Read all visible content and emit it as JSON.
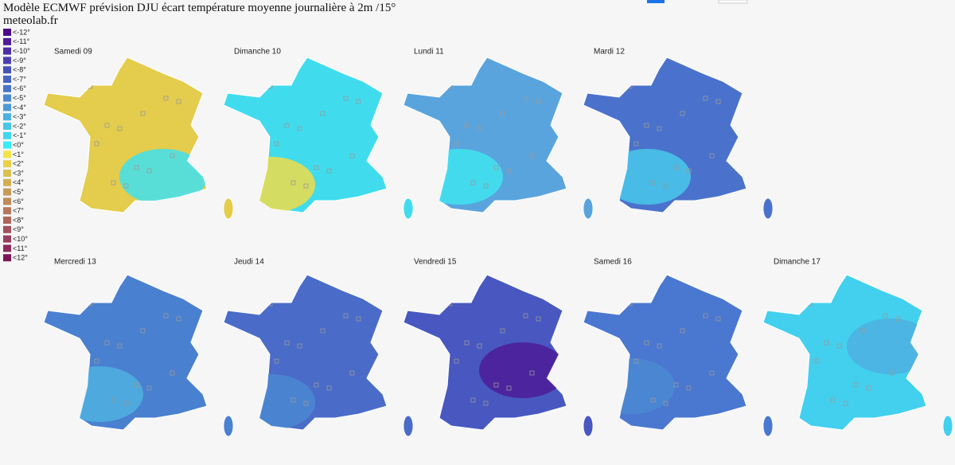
{
  "header": {
    "title": "Modèle ECMWF prévision DJU écart température moyenne journalière à 2m /15°",
    "site": "meteolab.fr"
  },
  "legend": [
    {
      "label": "<-12°",
      "color": "#4a0a8a"
    },
    {
      "label": "<-11°",
      "color": "#4e1c98"
    },
    {
      "label": "<-10°",
      "color": "#4c2ea6"
    },
    {
      "label": "<-9°",
      "color": "#4a40b0"
    },
    {
      "label": "<-8°",
      "color": "#4852b8"
    },
    {
      "label": "<-7°",
      "color": "#4664c2"
    },
    {
      "label": "<-6°",
      "color": "#4676ca"
    },
    {
      "label": "<-5°",
      "color": "#4a88d2"
    },
    {
      "label": "<-4°",
      "color": "#4c9ad8"
    },
    {
      "label": "<-3°",
      "color": "#4eb0e0"
    },
    {
      "label": "<-2°",
      "color": "#48c6e8"
    },
    {
      "label": "<-1°",
      "color": "#40d8ee"
    },
    {
      "label": "<0°",
      "color": "#38eef6"
    },
    {
      "label": "<1°",
      "color": "#f2e448"
    },
    {
      "label": "<2°",
      "color": "#e8d04c"
    },
    {
      "label": "<3°",
      "color": "#dcc050"
    },
    {
      "label": "<4°",
      "color": "#d4b054"
    },
    {
      "label": "<5°",
      "color": "#c89a58"
    },
    {
      "label": "<6°",
      "color": "#c08a5a"
    },
    {
      "label": "<7°",
      "color": "#b8785c"
    },
    {
      "label": "<8°",
      "color": "#b0665e"
    },
    {
      "label": "<9°",
      "color": "#a4505e"
    },
    {
      "label": "<10°",
      "color": "#983e5e"
    },
    {
      "label": "<11°",
      "color": "#8c2a5c"
    },
    {
      "label": "<12°",
      "color": "#7e1458"
    }
  ],
  "maps": [
    {
      "label": "Samedi 09"
    },
    {
      "label": "Dimanche 10"
    },
    {
      "label": "Lundi 11"
    },
    {
      "label": "Mardi 12"
    },
    {
      "label": "Mercredi 13"
    },
    {
      "label": "Jeudi 14"
    },
    {
      "label": "Vendredi 15"
    },
    {
      "label": "Samedi 16"
    },
    {
      "label": "Dimanche 17"
    }
  ]
}
